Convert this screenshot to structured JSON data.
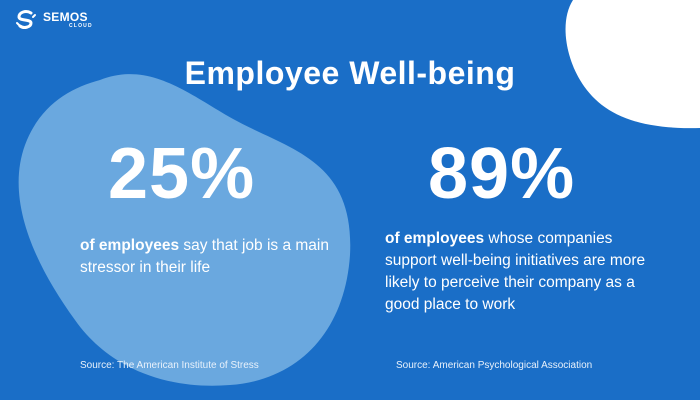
{
  "brand": {
    "name": "SEMOS",
    "subtitle": "CLOUD",
    "logo_icon": "semos-cloud-logo-icon"
  },
  "colors": {
    "background": "#1a6ec7",
    "blob_left": "#6aa8df",
    "blob_right": "#ffffff",
    "text": "#ffffff"
  },
  "title": "Employee Well-being",
  "stats": [
    {
      "value": "25%",
      "lead": "of employees",
      "text": " say that job is a main stressor in their life",
      "source": "Source: The American Institute of Stress"
    },
    {
      "value": "89%",
      "lead": "of employees",
      "text": " whose companies support well-being initiatives are more likely to perceive their company as a good place to work",
      "source": "Source: American Psychological Association"
    }
  ]
}
